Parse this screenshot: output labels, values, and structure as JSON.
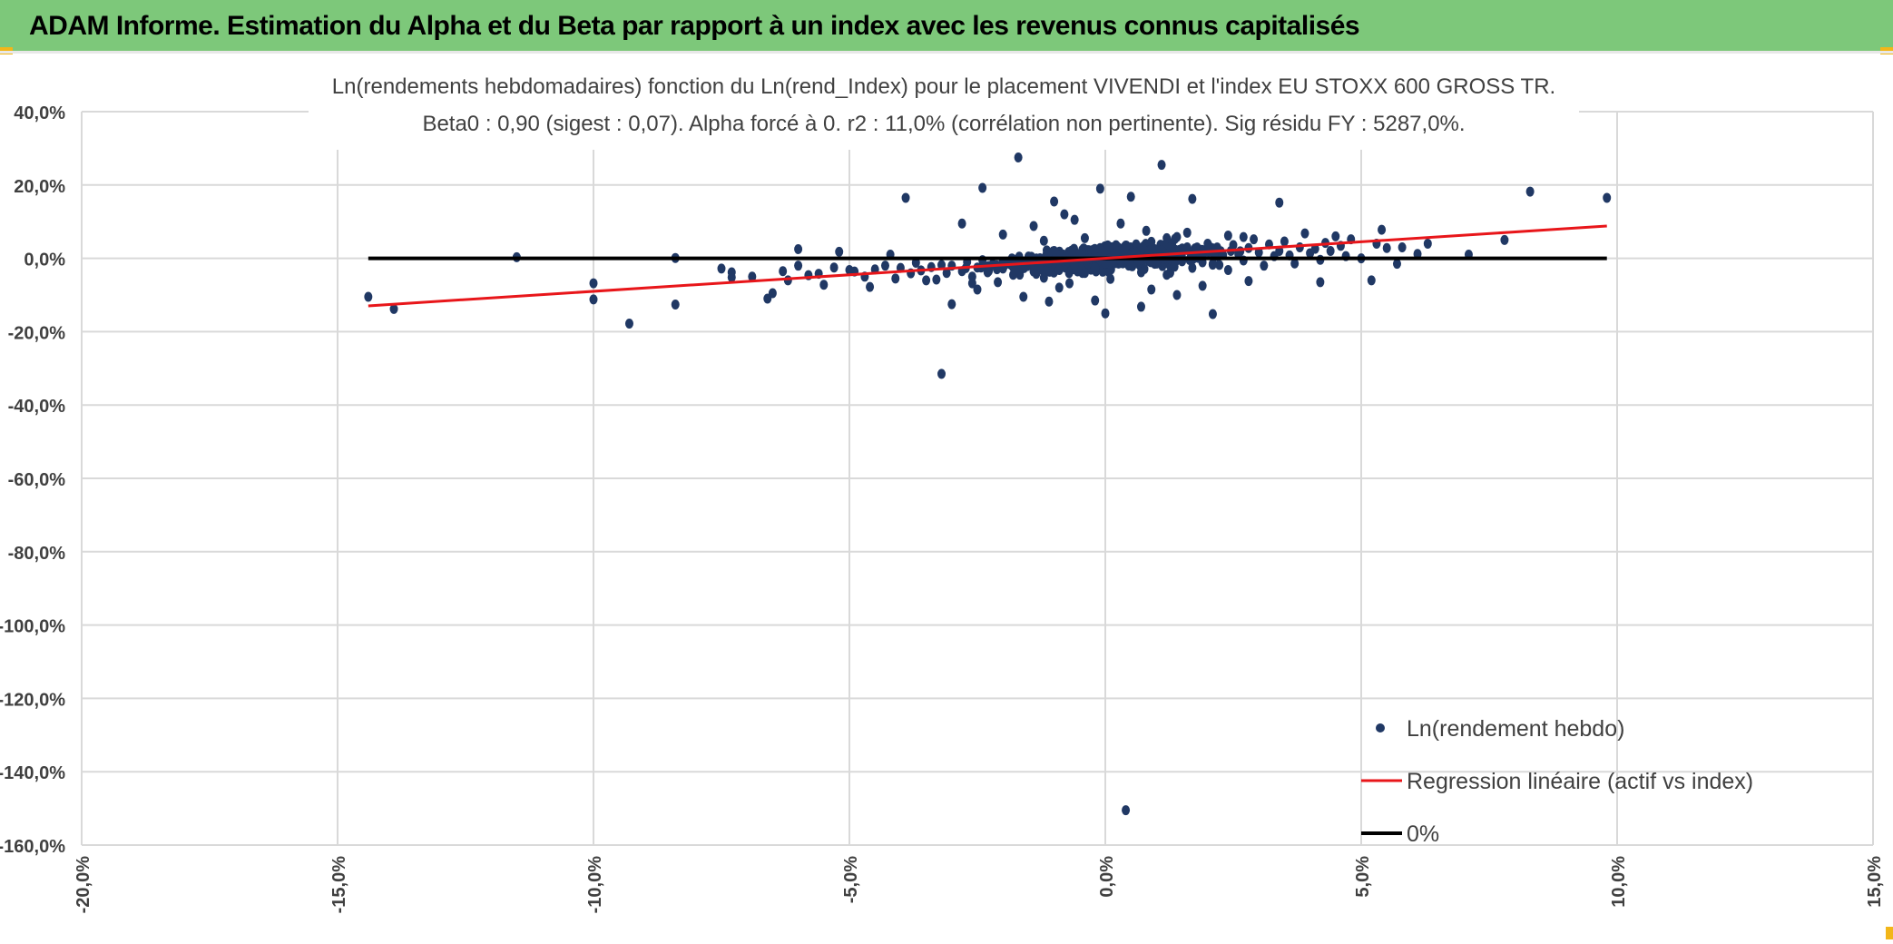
{
  "header": {
    "title": "ADAM Informe. Estimation du Alpha et du Beta par rapport à un index avec les revenus connus capitalisés"
  },
  "colors": {
    "title_bar": "#7dc87a",
    "points": "#203864",
    "regression": "#e8161a",
    "zero_line": "#000000",
    "grid": "#d9d9d9",
    "corner_accent": "#f2b619"
  },
  "chart_data": {
    "type": "scatter",
    "title_line1": "Ln(rendements hebdomadaires) fonction du Ln(rend_Index) pour le placement VIVENDI et l'index EU STOXX 600 GROSS TR.",
    "title_line2": "Beta0 : 0,90 (sigest : 0,07). Alpha forcé à 0. r2 : 11,0% (corrélation non pertinente). Sig résidu FY : 5287,0%.",
    "xlim": [
      -20,
      15
    ],
    "ylim": [
      -160,
      40
    ],
    "x_ticks": [
      -20,
      -15,
      -10,
      -5,
      0,
      5,
      10,
      15
    ],
    "y_ticks": [
      40,
      20,
      0,
      -20,
      -40,
      -60,
      -80,
      -100,
      -120,
      -140,
      -160
    ],
    "x_tick_labels": [
      "-20,0%",
      "-15,0%",
      "-10,0%",
      "-5,0%",
      "0,0%",
      "5,0%",
      "10,0%",
      "15,0%"
    ],
    "y_tick_labels": [
      "40,0%",
      "20,0%",
      "0,0%",
      "-20,0%",
      "-40,0%",
      "-60,0%",
      "-80,0%",
      "-100,0%",
      "-120,0%",
      "-140,0%",
      "-160,0%"
    ],
    "grid": true,
    "legend_position": "bottom-right",
    "legend": [
      {
        "label": "Ln(rendement hebdo)",
        "kind": "marker"
      },
      {
        "label": "Regression linéaire (actif vs index)",
        "kind": "line-red"
      },
      {
        "label": "0%",
        "kind": "line-black"
      }
    ],
    "regression": {
      "slope": 0.9,
      "intercept": 0,
      "x_range": [
        -14.4,
        9.8
      ]
    },
    "zero_line": {
      "y": 0,
      "x_range": [
        -14.4,
        9.8
      ]
    },
    "series": [
      {
        "name": "Ln(rendement hebdo)",
        "points": [
          [
            -14.4,
            -10.5
          ],
          [
            -13.9,
            -13.8
          ],
          [
            -11.5,
            0.3
          ],
          [
            -10.0,
            -6.8
          ],
          [
            -10.0,
            -11.2
          ],
          [
            -9.3,
            -17.8
          ],
          [
            -8.4,
            -12.6
          ],
          [
            -8.4,
            0.1
          ],
          [
            -7.5,
            -2.8
          ],
          [
            -7.3,
            -3.8
          ],
          [
            -7.3,
            -5.2
          ],
          [
            -6.9,
            -5.0
          ],
          [
            -6.6,
            -11.0
          ],
          [
            -6.5,
            -9.5
          ],
          [
            -6.3,
            -3.5
          ],
          [
            -6.2,
            -6.0
          ],
          [
            -6.0,
            2.5
          ],
          [
            -6.0,
            -2.0
          ],
          [
            -5.8,
            -4.6
          ],
          [
            -5.6,
            -4.2
          ],
          [
            -5.5,
            -7.2
          ],
          [
            -5.3,
            -2.5
          ],
          [
            -5.2,
            1.8
          ],
          [
            -5.0,
            -3.2
          ],
          [
            -4.9,
            -3.6
          ],
          [
            -4.7,
            -5.0
          ],
          [
            -4.6,
            -7.8
          ],
          [
            -4.5,
            -3.0
          ],
          [
            -4.3,
            -2.0
          ],
          [
            -4.2,
            1.0
          ],
          [
            -4.1,
            -5.5
          ],
          [
            -4.0,
            -2.6
          ],
          [
            -3.9,
            16.5
          ],
          [
            -3.8,
            -4.1
          ],
          [
            -3.7,
            -1.2
          ],
          [
            -3.6,
            -3.3
          ],
          [
            -3.5,
            -6.0
          ],
          [
            -3.4,
            -2.4
          ],
          [
            -3.3,
            -5.8
          ],
          [
            -3.2,
            -1.8
          ],
          [
            -3.1,
            -4.0
          ],
          [
            -3.0,
            -12.5
          ],
          [
            -3.0,
            -2.0
          ],
          [
            -2.8,
            9.5
          ],
          [
            -2.8,
            -3.5
          ],
          [
            -2.7,
            -1.0
          ],
          [
            -2.6,
            -5.0
          ],
          [
            -2.5,
            -8.5
          ],
          [
            -2.5,
            -2.5
          ],
          [
            -2.4,
            -0.5
          ],
          [
            -2.3,
            -3.8
          ],
          [
            -2.2,
            -1.6
          ],
          [
            -2.1,
            -6.5
          ],
          [
            -2.0,
            -2.8
          ],
          [
            -1.9,
            -0.9
          ],
          [
            -1.8,
            -4.5
          ],
          [
            -1.7,
            -3.0
          ],
          [
            -1.6,
            -10.5
          ],
          [
            -1.6,
            -1.5
          ],
          [
            -1.5,
            0.5
          ],
          [
            -1.4,
            -3.6
          ],
          [
            -1.3,
            -2.2
          ],
          [
            -1.2,
            -5.3
          ],
          [
            -1.1,
            -1.0
          ],
          [
            -1.0,
            2.0
          ],
          [
            -0.9,
            -3.2
          ],
          [
            -0.8,
            -0.6
          ],
          [
            -0.7,
            -6.8
          ],
          [
            -0.6,
            -1.9
          ],
          [
            -0.5,
            1.2
          ],
          [
            -0.4,
            -4.0
          ],
          [
            -0.3,
            0.0
          ],
          [
            -0.2,
            -2.5
          ],
          [
            -0.1,
            2.8
          ],
          [
            0.0,
            -1.4
          ],
          [
            0.1,
            -5.6
          ],
          [
            0.2,
            0.8
          ],
          [
            0.3,
            -0.5
          ],
          [
            0.4,
            3.5
          ],
          [
            0.5,
            -2.0
          ],
          [
            0.6,
            1.5
          ],
          [
            0.7,
            -3.8
          ],
          [
            0.8,
            0.2
          ],
          [
            0.9,
            4.5
          ],
          [
            1.0,
            -1.0
          ],
          [
            1.1,
            2.2
          ],
          [
            1.2,
            -4.5
          ],
          [
            1.3,
            1.0
          ],
          [
            1.4,
            5.8
          ],
          [
            1.5,
            -0.8
          ],
          [
            1.6,
            3.0
          ],
          [
            1.7,
            -2.6
          ],
          [
            1.8,
            1.8
          ],
          [
            1.9,
            0.4
          ],
          [
            2.0,
            4.0
          ],
          [
            2.1,
            -1.5
          ],
          [
            2.2,
            2.4
          ],
          [
            2.3,
            0.9
          ],
          [
            2.4,
            -3.2
          ],
          [
            2.5,
            3.6
          ],
          [
            2.6,
            1.2
          ],
          [
            2.7,
            -0.6
          ],
          [
            2.8,
            2.8
          ],
          [
            2.9,
            5.2
          ],
          [
            3.0,
            1.6
          ],
          [
            3.1,
            -2.0
          ],
          [
            3.2,
            3.8
          ],
          [
            3.3,
            0.6
          ],
          [
            3.4,
            2.0
          ],
          [
            3.5,
            4.6
          ],
          [
            3.6,
            0.8
          ],
          [
            3.7,
            -1.4
          ],
          [
            3.8,
            3.0
          ],
          [
            3.9,
            6.8
          ],
          [
            4.0,
            1.4
          ],
          [
            4.1,
            2.6
          ],
          [
            4.2,
            -0.4
          ],
          [
            4.3,
            4.2
          ],
          [
            4.4,
            2.0
          ],
          [
            4.5,
            6.0
          ],
          [
            4.6,
            3.4
          ],
          [
            4.7,
            0.6
          ],
          [
            4.8,
            5.2
          ],
          [
            5.0,
            0.0
          ],
          [
            5.2,
            -6.0
          ],
          [
            5.3,
            4.0
          ],
          [
            5.4,
            7.8
          ],
          [
            5.5,
            2.8
          ],
          [
            5.7,
            -1.5
          ],
          [
            5.8,
            3.0
          ],
          [
            6.1,
            1.2
          ],
          [
            6.3,
            4.0
          ],
          [
            7.1,
            1.0
          ],
          [
            7.8,
            5.0
          ],
          [
            8.3,
            18.2
          ],
          [
            9.8,
            16.5
          ],
          [
            -1.7,
            27.5
          ],
          [
            1.1,
            25.5
          ],
          [
            -2.4,
            19.2
          ],
          [
            -0.1,
            19.0
          ],
          [
            0.5,
            16.8
          ],
          [
            -1.0,
            15.5
          ],
          [
            1.7,
            16.2
          ],
          [
            3.4,
            15.2
          ],
          [
            -0.8,
            12.0
          ],
          [
            -3.2,
            -31.5
          ],
          [
            0.4,
            -150.5
          ],
          [
            0.0,
            -15.0
          ],
          [
            0.7,
            -13.2
          ],
          [
            2.1,
            -15.2
          ],
          [
            -0.2,
            -11.5
          ],
          [
            -1.1,
            -11.8
          ],
          [
            1.4,
            -10.0
          ],
          [
            4.2,
            -6.5
          ],
          [
            -1.4,
            8.8
          ],
          [
            -0.6,
            10.5
          ],
          [
            0.3,
            9.5
          ],
          [
            0.8,
            7.5
          ],
          [
            1.6,
            7.0
          ],
          [
            2.4,
            6.2
          ],
          [
            -2.0,
            6.5
          ],
          [
            -0.4,
            5.5
          ],
          [
            1.2,
            5.5
          ],
          [
            2.7,
            5.8
          ],
          [
            -1.2,
            4.8
          ],
          [
            0.9,
            -8.5
          ],
          [
            1.9,
            -7.5
          ],
          [
            -0.9,
            -8.0
          ],
          [
            -2.6,
            -6.8
          ],
          [
            2.8,
            -6.2
          ]
        ]
      }
    ]
  }
}
